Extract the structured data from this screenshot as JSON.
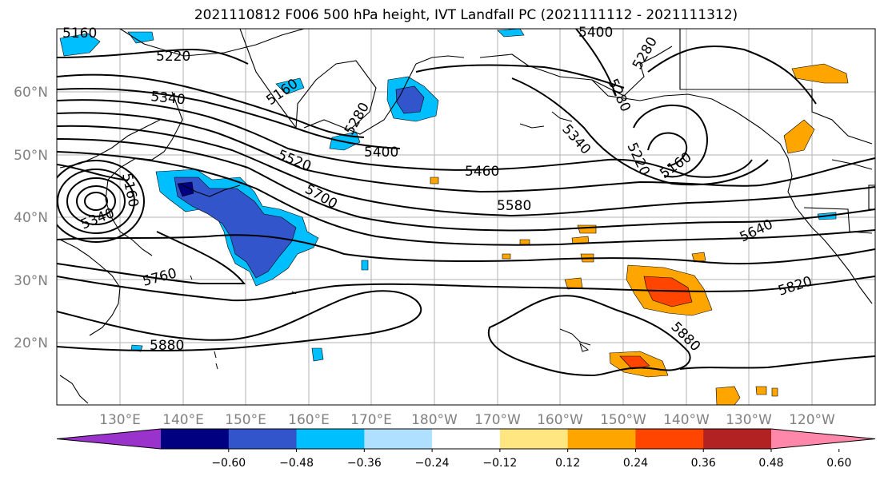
{
  "title": "2021110812 F006 500 hPa height, IVT Landfall PC (2021111112 - 2021111312)",
  "lat_labels": [
    "60°N",
    "50°N",
    "40°N",
    "30°N",
    "20°N"
  ],
  "lon_labels": [
    "130°E",
    "140°E",
    "150°E",
    "160°E",
    "170°E",
    "180°W",
    "170°W",
    "160°W",
    "150°W",
    "140°W",
    "130°W",
    "120°W"
  ],
  "contour_labels": [
    "5160",
    "5220",
    "5340",
    "5160",
    "5280",
    "5400",
    "5280",
    "5280",
    "5340",
    "5220",
    "5160",
    "5400",
    "5460",
    "5520",
    "5700",
    "5580",
    "5640",
    "5160",
    "5340",
    "5760",
    "5820",
    "5880",
    "5880",
    "5400"
  ],
  "colorbar": {
    "colors": [
      "#9933cc",
      "#000080",
      "#3355cc",
      "#00bfff",
      "#b0e0ff",
      "#ffffff",
      "#ffe680",
      "#ffa500",
      "#ff4500",
      "#b22222",
      "#ff88aa"
    ],
    "tick_labels": [
      "−0.60",
      "−0.48",
      "−0.36",
      "−0.24",
      "−0.12",
      "0.12",
      "0.24",
      "0.36",
      "0.48",
      "0.60"
    ]
  }
}
